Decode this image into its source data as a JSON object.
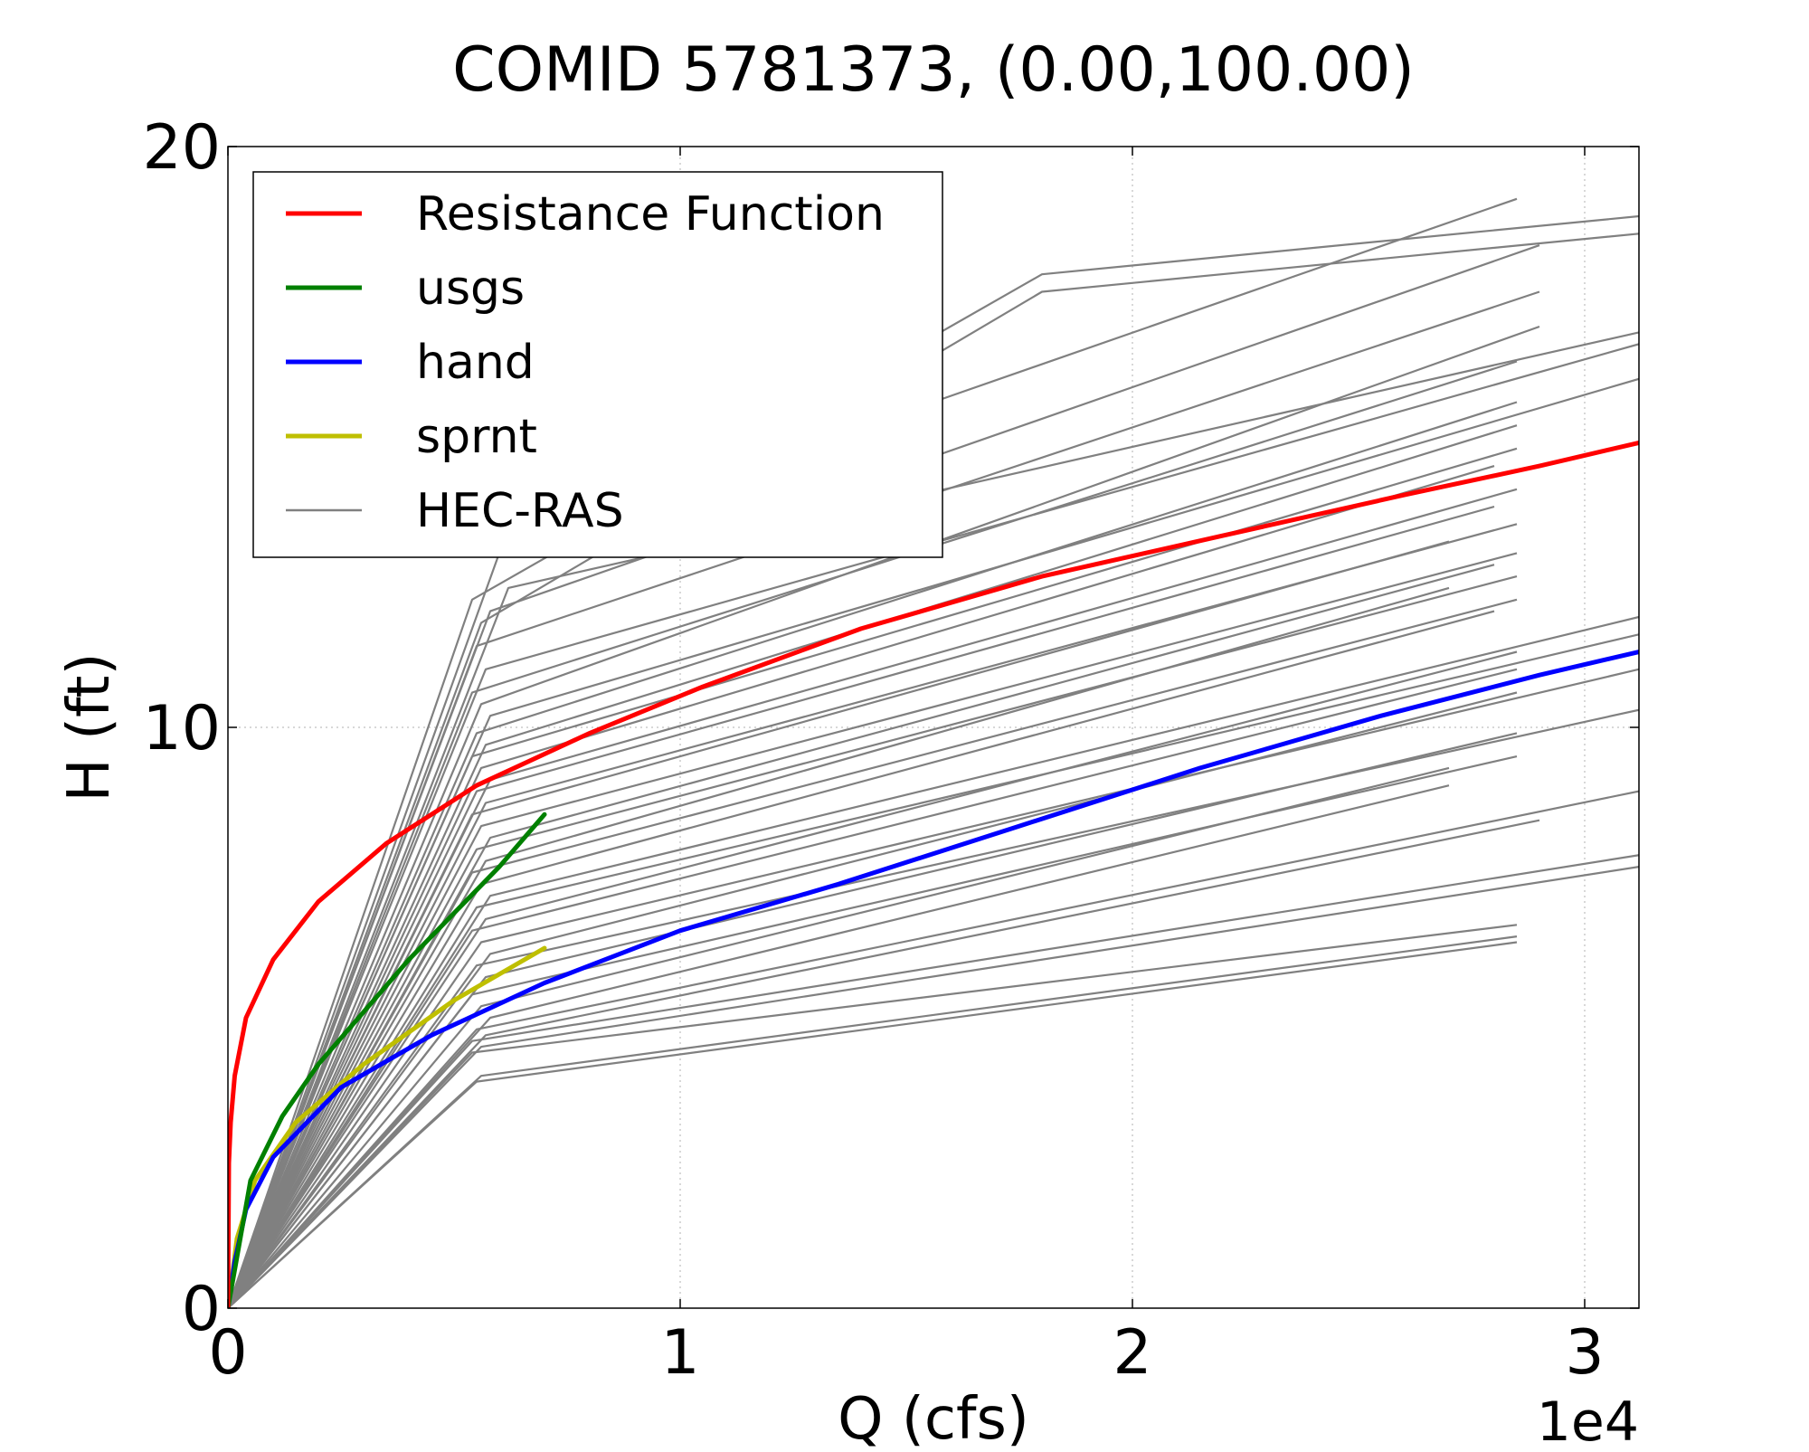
{
  "chart_data": {
    "type": "line",
    "title": "COMID 5781373, (0.00,100.00)",
    "xlabel": "Q (cfs)",
    "ylabel": "H (ft)",
    "x_offset_label": "1e4",
    "xlim": [
      0,
      31200
    ],
    "ylim": [
      0,
      20
    ],
    "x_ticks": [
      {
        "value": 0,
        "label": "0"
      },
      {
        "value": 10000,
        "label": "1"
      },
      {
        "value": 20000,
        "label": "2"
      },
      {
        "value": 30000,
        "label": "3"
      }
    ],
    "y_ticks": [
      {
        "value": 0,
        "label": "0"
      },
      {
        "value": 10,
        "label": "10"
      },
      {
        "value": 20,
        "label": "20"
      }
    ],
    "grid": true,
    "legend_position": "top-left",
    "legend": [
      {
        "label": "Resistance Function",
        "color": "#ff0000"
      },
      {
        "label": "usgs",
        "color": "#008000"
      },
      {
        "label": "hand",
        "color": "#0000ff"
      },
      {
        "label": "sprnt",
        "color": "#bfbf00"
      },
      {
        "label": "HEC-RAS",
        "color": "#808080"
      }
    ],
    "series": [
      {
        "name": "Resistance Function",
        "color": "#ff0000",
        "x": [
          0,
          20,
          60,
          150,
          400,
          1000,
          2000,
          3500,
          5500,
          8000,
          10500,
          14000,
          18000,
          22000,
          26000,
          29000,
          31200
        ],
        "y": [
          0,
          2.5,
          3.2,
          4.0,
          5.0,
          6.0,
          7.0,
          8.0,
          9.0,
          9.9,
          10.7,
          11.7,
          12.6,
          13.3,
          14.0,
          14.5,
          14.9
        ]
      },
      {
        "name": "usgs",
        "color": "#008000",
        "x": [
          0,
          500,
          1200,
          2000,
          3000,
          4000,
          5000,
          6000,
          7000
        ],
        "y": [
          0,
          2.2,
          3.3,
          4.2,
          5.1,
          6.0,
          6.8,
          7.6,
          8.5
        ]
      },
      {
        "name": "hand",
        "color": "#0000ff",
        "x": [
          0,
          150,
          400,
          1000,
          2500,
          4500,
          7000,
          10000,
          13500,
          17500,
          21500,
          25500,
          29000,
          31200
        ],
        "y": [
          0,
          0.8,
          1.7,
          2.6,
          3.8,
          4.7,
          5.6,
          6.5,
          7.3,
          8.3,
          9.3,
          10.2,
          10.9,
          11.3
        ]
      },
      {
        "name": "sprnt",
        "color": "#bfbf00",
        "x": [
          0,
          200,
          600,
          1500,
          3000,
          5000,
          7000
        ],
        "y": [
          0,
          1.2,
          2.2,
          3.2,
          4.2,
          5.3,
          6.2
        ]
      }
    ],
    "hecras_series": [
      {
        "x": [
          0,
          5400,
          18000,
          31200
        ],
        "y": [
          0,
          12.2,
          17.8,
          18.8
        ]
      },
      {
        "x": [
          0,
          5600,
          18000,
          31200
        ],
        "y": [
          0,
          11.8,
          17.5,
          18.5
        ]
      },
      {
        "x": [
          0,
          6000,
          28500
        ],
        "y": [
          0,
          13.0,
          19.1
        ]
      },
      {
        "x": [
          0,
          5800,
          29000
        ],
        "y": [
          0,
          12.0,
          18.3
        ]
      },
      {
        "x": [
          0,
          6200,
          31200
        ],
        "y": [
          0,
          12.4,
          16.8
        ]
      },
      {
        "x": [
          0,
          5500,
          29000
        ],
        "y": [
          0,
          11.4,
          17.5
        ]
      },
      {
        "x": [
          0,
          5700,
          31200
        ],
        "y": [
          0,
          11.0,
          16.6
        ]
      },
      {
        "x": [
          0,
          5400,
          28500
        ],
        "y": [
          0,
          10.6,
          16.3
        ]
      },
      {
        "x": [
          0,
          5600,
          29000
        ],
        "y": [
          0,
          10.4,
          16.9
        ]
      },
      {
        "x": [
          0,
          5800,
          31200
        ],
        "y": [
          0,
          10.2,
          16.0
        ]
      },
      {
        "x": [
          0,
          5500,
          28500
        ],
        "y": [
          0,
          9.9,
          15.6
        ]
      },
      {
        "x": [
          0,
          5700,
          28500
        ],
        "y": [
          0,
          9.7,
          15.2
        ]
      },
      {
        "x": [
          0,
          5400,
          28500
        ],
        "y": [
          0,
          9.5,
          14.8
        ]
      },
      {
        "x": [
          0,
          5600,
          28000
        ],
        "y": [
          0,
          9.3,
          14.5
        ]
      },
      {
        "x": [
          0,
          5800,
          28500
        ],
        "y": [
          0,
          9.1,
          14.1
        ]
      },
      {
        "x": [
          0,
          5500,
          28000
        ],
        "y": [
          0,
          8.9,
          13.8
        ]
      },
      {
        "x": [
          0,
          5700,
          28500
        ],
        "y": [
          0,
          8.7,
          13.5
        ]
      },
      {
        "x": [
          0,
          5400,
          27000
        ],
        "y": [
          0,
          8.5,
          13.2
        ]
      },
      {
        "x": [
          0,
          5600,
          28500
        ],
        "y": [
          0,
          8.3,
          13.0
        ]
      },
      {
        "x": [
          0,
          5800,
          28000
        ],
        "y": [
          0,
          8.1,
          12.8
        ]
      },
      {
        "x": [
          0,
          5500,
          28500
        ],
        "y": [
          0,
          7.9,
          12.6
        ]
      },
      {
        "x": [
          0,
          5700,
          27000
        ],
        "y": [
          0,
          7.7,
          12.4
        ]
      },
      {
        "x": [
          0,
          5400,
          28500
        ],
        "y": [
          0,
          7.5,
          12.2
        ]
      },
      {
        "x": [
          0,
          5600,
          28000
        ],
        "y": [
          0,
          7.3,
          12.0
        ]
      },
      {
        "x": [
          0,
          5800,
          31200
        ],
        "y": [
          0,
          7.1,
          11.9
        ]
      },
      {
        "x": [
          0,
          5500,
          31200
        ],
        "y": [
          0,
          6.9,
          11.6
        ]
      },
      {
        "x": [
          0,
          5700,
          28500
        ],
        "y": [
          0,
          6.7,
          11.3
        ]
      },
      {
        "x": [
          0,
          5400,
          28500
        ],
        "y": [
          0,
          6.5,
          11.0
        ]
      },
      {
        "x": [
          0,
          5600,
          31200
        ],
        "y": [
          0,
          6.3,
          11.0
        ]
      },
      {
        "x": [
          0,
          5800,
          28500
        ],
        "y": [
          0,
          6.1,
          10.6
        ]
      },
      {
        "x": [
          0,
          5500,
          31200
        ],
        "y": [
          0,
          5.9,
          10.3
        ]
      },
      {
        "x": [
          0,
          5700,
          28500
        ],
        "y": [
          0,
          5.7,
          9.9
        ]
      },
      {
        "x": [
          0,
          5400,
          28500
        ],
        "y": [
          0,
          5.4,
          9.5
        ]
      },
      {
        "x": [
          0,
          5600,
          27000
        ],
        "y": [
          0,
          5.2,
          9.3
        ]
      },
      {
        "x": [
          0,
          5800,
          27000
        ],
        "y": [
          0,
          5.0,
          9.0
        ]
      },
      {
        "x": [
          0,
          5500,
          31200
        ],
        "y": [
          0,
          4.8,
          8.9
        ]
      },
      {
        "x": [
          0,
          5700,
          29000
        ],
        "y": [
          0,
          4.7,
          8.4
        ]
      },
      {
        "x": [
          0,
          5400,
          31200
        ],
        "y": [
          0,
          4.6,
          7.8
        ]
      },
      {
        "x": [
          0,
          5600,
          31200
        ],
        "y": [
          0,
          4.5,
          7.6
        ]
      },
      {
        "x": [
          0,
          5400,
          28500
        ],
        "y": [
          0,
          4.4,
          6.6
        ]
      },
      {
        "x": [
          0,
          5600,
          28500
        ],
        "y": [
          0,
          4.0,
          6.4
        ]
      },
      {
        "x": [
          0,
          5500,
          28500
        ],
        "y": [
          0,
          3.9,
          6.3
        ]
      }
    ]
  }
}
